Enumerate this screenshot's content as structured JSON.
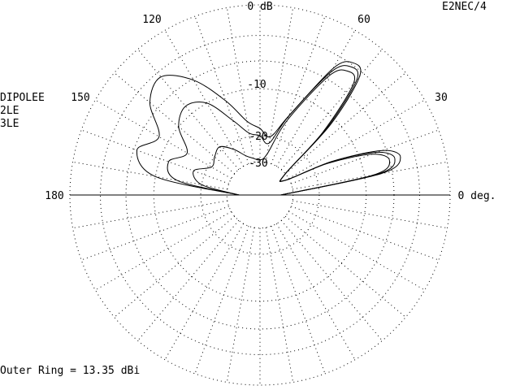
{
  "program": "E2NEC/4",
  "outer_ring_label": "Outer Ring = 13.35 dBi",
  "legend": [
    "DIPOLEE",
    "2LE",
    "3LE"
  ],
  "chart_data": {
    "type": "polar",
    "title": "",
    "angle_labels": [
      "0 deg.",
      "30",
      "60",
      "120",
      "150",
      "180"
    ],
    "angle_label_degrees": [
      0,
      30,
      60,
      120,
      150,
      180
    ],
    "db_ring_labels": [
      "0 dB",
      "-10",
      "-20",
      "-30"
    ],
    "db_ring_values": [
      0,
      -10,
      -20,
      -30
    ],
    "outer_ring_dbi": 13.35,
    "scale": "ARRL log",
    "rings_db": [
      0,
      -3,
      -6,
      -10,
      -20,
      -30
    ],
    "spoke_step_deg": 10,
    "grid": true,
    "series": [
      {
        "name": "DIPOLEE",
        "points": [
          [
            0,
            -38
          ],
          [
            10,
            -7.5
          ],
          [
            15,
            -4.6
          ],
          [
            20,
            -6.5
          ],
          [
            25,
            -15
          ],
          [
            30,
            -32
          ],
          [
            40,
            -30
          ],
          [
            45,
            -11
          ],
          [
            50,
            -3.5
          ],
          [
            55,
            -2.8
          ],
          [
            60,
            -4.5
          ],
          [
            70,
            -14
          ],
          [
            80,
            -20
          ],
          [
            90,
            -18
          ],
          [
            100,
            -16
          ],
          [
            110,
            -11
          ],
          [
            120,
            -6.2
          ],
          [
            130,
            -3.6
          ],
          [
            140,
            -4.8
          ],
          [
            150,
            -8.4
          ],
          [
            160,
            -6.4
          ],
          [
            170,
            -10
          ],
          [
            180,
            -38
          ]
        ]
      },
      {
        "name": "2LE",
        "points": [
          [
            0,
            -38
          ],
          [
            10,
            -8
          ],
          [
            15,
            -5.3
          ],
          [
            20,
            -7.2
          ],
          [
            25,
            -15
          ],
          [
            30,
            -32
          ],
          [
            40,
            -30
          ],
          [
            45,
            -12
          ],
          [
            50,
            -4
          ],
          [
            55,
            -3.3
          ],
          [
            60,
            -5
          ],
          [
            70,
            -14
          ],
          [
            80,
            -22
          ],
          [
            90,
            -20
          ],
          [
            100,
            -19
          ],
          [
            110,
            -15
          ],
          [
            120,
            -10
          ],
          [
            130,
            -8.5
          ],
          [
            140,
            -10
          ],
          [
            150,
            -14
          ],
          [
            160,
            -11.5
          ],
          [
            170,
            -14
          ],
          [
            180,
            -38
          ]
        ]
      },
      {
        "name": "3LE",
        "points": [
          [
            0,
            -38
          ],
          [
            10,
            -8.6
          ],
          [
            15,
            -6
          ],
          [
            20,
            -8
          ],
          [
            25,
            -16
          ],
          [
            30,
            -32
          ],
          [
            40,
            -30
          ],
          [
            45,
            -13
          ],
          [
            50,
            -4.6
          ],
          [
            55,
            -3.9
          ],
          [
            60,
            -5.6
          ],
          [
            70,
            -15
          ],
          [
            80,
            -26
          ],
          [
            90,
            -29
          ],
          [
            100,
            -28
          ],
          [
            110,
            -26
          ],
          [
            120,
            -22
          ],
          [
            130,
            -19
          ],
          [
            140,
            -20
          ],
          [
            150,
            -21
          ],
          [
            160,
            -17
          ],
          [
            170,
            -20
          ],
          [
            180,
            -38
          ]
        ]
      }
    ]
  }
}
